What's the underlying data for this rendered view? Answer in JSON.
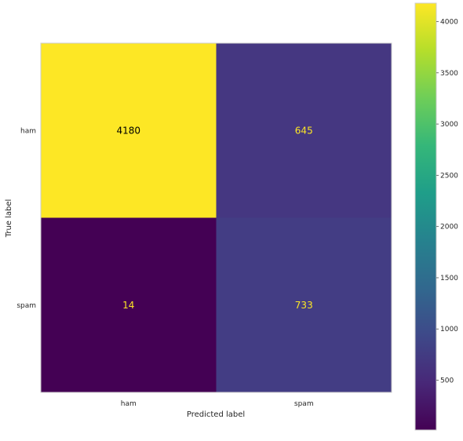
{
  "chart_data": {
    "type": "heatmap",
    "title": "",
    "xlabel": "Predicted label",
    "ylabel": "True label",
    "x_categories": [
      "ham",
      "spam"
    ],
    "y_categories": [
      "ham",
      "spam"
    ],
    "values": [
      [
        4180,
        645
      ],
      [
        14,
        733
      ]
    ],
    "colormap": "viridis",
    "colorbar": {
      "min": 14,
      "max": 4180,
      "ticks": [
        500,
        1000,
        1500,
        2000,
        2500,
        3000,
        3500,
        4000
      ]
    },
    "cell_colors": [
      [
        "#fde725",
        "#453781"
      ],
      [
        "#440154",
        "#433d84"
      ]
    ],
    "text_colors": [
      [
        "#000000",
        "#fde725"
      ],
      [
        "#fde725",
        "#fde725"
      ]
    ],
    "grid": false
  }
}
